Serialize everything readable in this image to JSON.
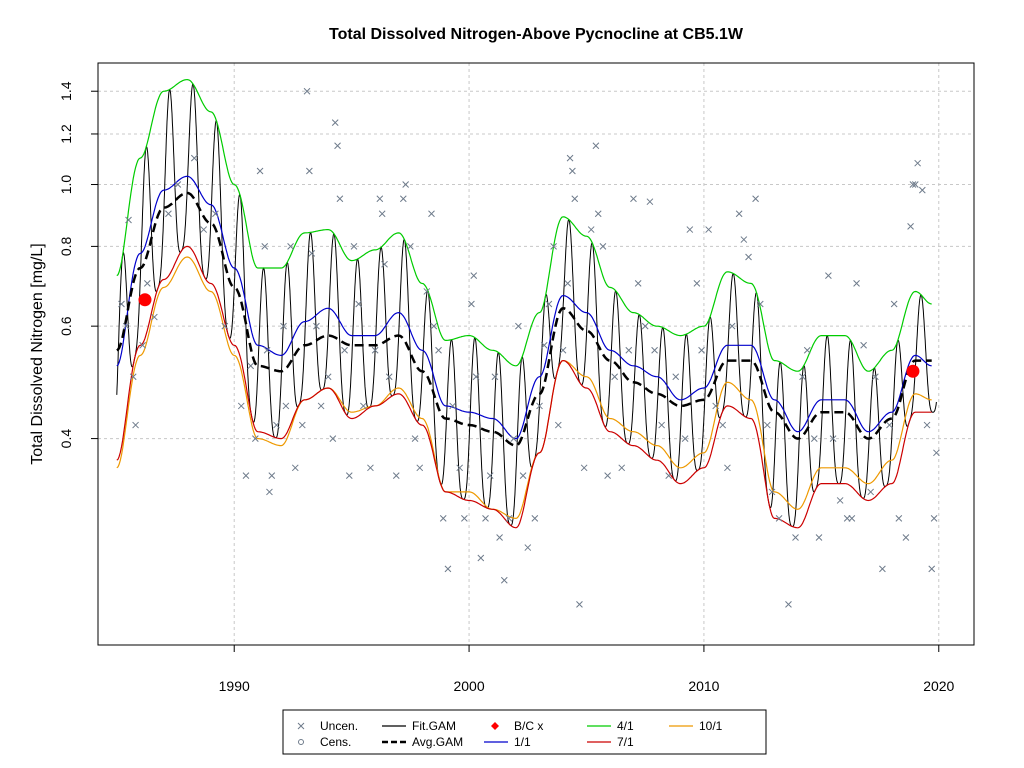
{
  "chart_data": {
    "type": "line",
    "title": "Total Dissolved Nitrogen-Above Pycnocline at CB5.1W",
    "xlabel": "",
    "ylabel": "Total Dissolved Nitrogen [mg/L]",
    "xlim": [
      1984.2,
      2021.5
    ],
    "ylim": [
      0.19,
      1.55
    ],
    "y_scale": "log",
    "x_ticks": [
      1990,
      2000,
      2010,
      2020
    ],
    "x_tick_labels": [
      "1990",
      "2000",
      "2010",
      "2020"
    ],
    "y_ticks": [
      0.4,
      0.6,
      0.8,
      1.0,
      1.2,
      1.4
    ],
    "y_tick_labels": [
      "0.4",
      "0.6",
      "0.8",
      "1.0",
      "1.2",
      "1.4"
    ],
    "grid": true,
    "legend_position": "bottom",
    "colors": {
      "fit_gam": "#000000",
      "avg_gam": "#000000",
      "one_one": "#0000cc",
      "four_one": "#00cc00",
      "seven_one": "#cc0000",
      "ten_one": "#ee9900",
      "uncen": "#6e7b8b",
      "bc": "#ff0000"
    },
    "series": [
      {
        "name": "Avg.GAM",
        "x": [
          1985,
          1986,
          1987,
          1988,
          1989,
          1990,
          1991,
          1992,
          1993,
          1994,
          1995,
          1996,
          1997,
          1998,
          1999,
          2000,
          2001,
          2002,
          2003,
          2004,
          2005,
          2006,
          2007,
          2008,
          2009,
          2010,
          2011,
          2012,
          2013,
          2014,
          2015,
          2016,
          2017,
          2018,
          2019,
          2019.7
        ],
        "y": [
          0.55,
          0.74,
          0.92,
          0.97,
          0.87,
          0.69,
          0.52,
          0.51,
          0.56,
          0.58,
          0.56,
          0.56,
          0.58,
          0.51,
          0.43,
          0.42,
          0.41,
          0.39,
          0.47,
          0.64,
          0.59,
          0.53,
          0.49,
          0.47,
          0.45,
          0.46,
          0.53,
          0.53,
          0.44,
          0.4,
          0.44,
          0.44,
          0.4,
          0.43,
          0.53,
          0.53
        ]
      },
      {
        "name": "1/1",
        "x": [
          1985,
          1986,
          1987,
          1988,
          1989,
          1990,
          1991,
          1992,
          1993,
          1994,
          1995,
          1996,
          1997,
          1998,
          1999,
          2000,
          2001,
          2002,
          2003,
          2004,
          2005,
          2006,
          2007,
          2008,
          2009,
          2010,
          2011,
          2012,
          2013,
          2014,
          2015,
          2016,
          2017,
          2018,
          2019,
          2019.7
        ],
        "y": [
          0.52,
          0.78,
          0.98,
          1.03,
          0.93,
          0.74,
          0.56,
          0.54,
          0.61,
          0.64,
          0.58,
          0.58,
          0.63,
          0.55,
          0.45,
          0.44,
          0.43,
          0.4,
          0.5,
          0.67,
          0.63,
          0.55,
          0.52,
          0.5,
          0.46,
          0.48,
          0.56,
          0.56,
          0.46,
          0.41,
          0.46,
          0.46,
          0.41,
          0.44,
          0.54,
          0.52
        ]
      },
      {
        "name": "4/1",
        "x": [
          1985,
          1986,
          1987,
          1988,
          1989,
          1990,
          1991,
          1992,
          1993,
          1994,
          1995,
          1996,
          1997,
          1998,
          1999,
          2000,
          2001,
          2002,
          2003,
          2004,
          2005,
          2006,
          2007,
          2008,
          2009,
          2010,
          2011,
          2012,
          2013,
          2014,
          2015,
          2016,
          2017,
          2018,
          2019,
          2019.7
        ],
        "y": [
          0.72,
          1.1,
          1.4,
          1.46,
          1.3,
          1.0,
          0.74,
          0.74,
          0.84,
          0.85,
          0.76,
          0.79,
          0.84,
          0.7,
          0.57,
          0.58,
          0.55,
          0.52,
          0.63,
          0.89,
          0.83,
          0.69,
          0.63,
          0.6,
          0.58,
          0.6,
          0.73,
          0.7,
          0.53,
          0.51,
          0.58,
          0.58,
          0.51,
          0.55,
          0.68,
          0.65
        ]
      },
      {
        "name": "7/1",
        "x": [
          1985,
          1986,
          1987,
          1988,
          1989,
          1990,
          1991,
          1992,
          1993,
          1994,
          1995,
          1996,
          1997,
          1998,
          1999,
          2000,
          2001,
          2002,
          2003,
          2004,
          2005,
          2006,
          2007,
          2008,
          2009,
          2010,
          2011,
          2012,
          2013,
          2014,
          2015,
          2016,
          2017,
          2018,
          2019,
          2019.7
        ],
        "y": [
          0.37,
          0.56,
          0.71,
          0.8,
          0.7,
          0.56,
          0.41,
          0.4,
          0.46,
          0.48,
          0.43,
          0.45,
          0.47,
          0.42,
          0.33,
          0.32,
          0.31,
          0.29,
          0.38,
          0.53,
          0.48,
          0.41,
          0.39,
          0.37,
          0.34,
          0.36,
          0.45,
          0.43,
          0.3,
          0.29,
          0.34,
          0.34,
          0.32,
          0.34,
          0.44,
          0.44
        ]
      },
      {
        "name": "10/1",
        "x": [
          1985,
          1986,
          1987,
          1988,
          1989,
          1990,
          1991,
          1992,
          1993,
          1994,
          1995,
          1996,
          1997,
          1998,
          1999,
          2000,
          2001,
          2002,
          2003,
          2004,
          2005,
          2006,
          2007,
          2008,
          2009,
          2010,
          2011,
          2012,
          2013,
          2014,
          2015,
          2016,
          2017,
          2018,
          2019,
          2019.7
        ],
        "y": [
          0.36,
          0.54,
          0.69,
          0.77,
          0.68,
          0.54,
          0.4,
          0.39,
          0.46,
          0.48,
          0.44,
          0.45,
          0.48,
          0.43,
          0.33,
          0.33,
          0.31,
          0.3,
          0.38,
          0.53,
          0.5,
          0.43,
          0.41,
          0.39,
          0.36,
          0.38,
          0.49,
          0.46,
          0.33,
          0.31,
          0.36,
          0.36,
          0.34,
          0.37,
          0.47,
          0.46
        ]
      }
    ],
    "fit_gam": {
      "name": "Fit.GAM",
      "note": "seasonal oscillation between 7/1 (min) and 4/1 (max) curves",
      "x_start": 1985,
      "x_end": 2019.9,
      "period_years": 1.0
    },
    "uncensored_points": [
      [
        1985.2,
        0.65
      ],
      [
        1985.4,
        0.6
      ],
      [
        1985.5,
        0.88
      ],
      [
        1985.7,
        0.5
      ],
      [
        1985.8,
        0.42
      ],
      [
        1986.1,
        0.56
      ],
      [
        1986.3,
        0.7
      ],
      [
        1986.6,
        0.62
      ],
      [
        1987.2,
        0.9
      ],
      [
        1987.6,
        1.0
      ],
      [
        1988.3,
        1.1
      ],
      [
        1988.7,
        0.85
      ],
      [
        1989.2,
        0.9
      ],
      [
        1989.6,
        0.6
      ],
      [
        1990.3,
        0.45
      ],
      [
        1990.5,
        0.35
      ],
      [
        1990.7,
        0.52
      ],
      [
        1990.9,
        0.4
      ],
      [
        1991.1,
        1.05
      ],
      [
        1991.3,
        0.8
      ],
      [
        1991.4,
        0.55
      ],
      [
        1991.5,
        0.33
      ],
      [
        1991.6,
        0.35
      ],
      [
        1991.8,
        0.42
      ],
      [
        1992.1,
        0.6
      ],
      [
        1992.2,
        0.45
      ],
      [
        1992.4,
        0.8
      ],
      [
        1992.6,
        0.36
      ],
      [
        1992.9,
        0.42
      ],
      [
        1993.1,
        1.4
      ],
      [
        1993.2,
        1.05
      ],
      [
        1993.3,
        0.78
      ],
      [
        1993.5,
        0.6
      ],
      [
        1993.7,
        0.45
      ],
      [
        1994.0,
        0.5
      ],
      [
        1994.2,
        0.4
      ],
      [
        1994.3,
        1.25
      ],
      [
        1994.4,
        1.15
      ],
      [
        1994.5,
        0.95
      ],
      [
        1994.7,
        0.55
      ],
      [
        1994.9,
        0.35
      ],
      [
        1995.1,
        0.8
      ],
      [
        1995.3,
        0.65
      ],
      [
        1995.5,
        0.45
      ],
      [
        1995.8,
        0.36
      ],
      [
        1996.0,
        0.55
      ],
      [
        1996.2,
        0.95
      ],
      [
        1996.3,
        0.9
      ],
      [
        1996.4,
        0.75
      ],
      [
        1996.6,
        0.5
      ],
      [
        1996.9,
        0.35
      ],
      [
        1997.2,
        0.95
      ],
      [
        1997.3,
        1.0
      ],
      [
        1997.5,
        0.8
      ],
      [
        1997.7,
        0.4
      ],
      [
        1997.9,
        0.36
      ],
      [
        1998.2,
        0.68
      ],
      [
        1998.4,
        0.9
      ],
      [
        1998.5,
        0.6
      ],
      [
        1998.7,
        0.55
      ],
      [
        1998.9,
        0.3
      ],
      [
        1999.1,
        0.25
      ],
      [
        1999.3,
        0.45
      ],
      [
        1999.6,
        0.36
      ],
      [
        1999.8,
        0.3
      ],
      [
        2000.1,
        0.65
      ],
      [
        2000.2,
        0.72
      ],
      [
        2000.3,
        0.5
      ],
      [
        2000.5,
        0.26
      ],
      [
        2000.7,
        0.3
      ],
      [
        2000.9,
        0.35
      ],
      [
        2001.1,
        0.5
      ],
      [
        2001.3,
        0.28
      ],
      [
        2001.5,
        0.24
      ],
      [
        2001.7,
        0.3
      ],
      [
        2001.9,
        0.4
      ],
      [
        2002.1,
        0.6
      ],
      [
        2002.3,
        0.35
      ],
      [
        2002.5,
        0.27
      ],
      [
        2002.8,
        0.3
      ],
      [
        2003.0,
        0.45
      ],
      [
        2003.2,
        0.56
      ],
      [
        2003.4,
        0.65
      ],
      [
        2003.6,
        0.8
      ],
      [
        2003.8,
        0.42
      ],
      [
        2004.0,
        0.55
      ],
      [
        2004.2,
        0.7
      ],
      [
        2004.3,
        1.1
      ],
      [
        2004.4,
        1.05
      ],
      [
        2004.5,
        0.95
      ],
      [
        2004.7,
        0.22
      ],
      [
        2004.9,
        0.36
      ],
      [
        2005.2,
        0.85
      ],
      [
        2005.4,
        1.15
      ],
      [
        2005.5,
        0.9
      ],
      [
        2005.7,
        0.8
      ],
      [
        2005.9,
        0.35
      ],
      [
        2006.2,
        0.5
      ],
      [
        2006.5,
        0.36
      ],
      [
        2006.8,
        0.55
      ],
      [
        2007.0,
        0.95
      ],
      [
        2007.2,
        0.7
      ],
      [
        2007.5,
        0.6
      ],
      [
        2007.7,
        0.94
      ],
      [
        2007.9,
        0.55
      ],
      [
        2008.2,
        0.42
      ],
      [
        2008.5,
        0.35
      ],
      [
        2008.8,
        0.5
      ],
      [
        2009.2,
        0.4
      ],
      [
        2009.4,
        0.85
      ],
      [
        2009.7,
        0.7
      ],
      [
        2009.9,
        0.55
      ],
      [
        2010.2,
        0.85
      ],
      [
        2010.5,
        0.45
      ],
      [
        2010.8,
        0.42
      ],
      [
        2011.0,
        0.36
      ],
      [
        2011.2,
        0.6
      ],
      [
        2011.5,
        0.9
      ],
      [
        2011.7,
        0.82
      ],
      [
        2011.9,
        0.77
      ],
      [
        2012.2,
        0.95
      ],
      [
        2012.4,
        0.65
      ],
      [
        2012.7,
        0.42
      ],
      [
        2012.9,
        0.33
      ],
      [
        2013.2,
        0.3
      ],
      [
        2013.6,
        0.22
      ],
      [
        2013.9,
        0.28
      ],
      [
        2014.2,
        0.5
      ],
      [
        2014.4,
        0.55
      ],
      [
        2014.7,
        0.4
      ],
      [
        2014.9,
        0.28
      ],
      [
        2015.3,
        0.72
      ],
      [
        2015.5,
        0.4
      ],
      [
        2015.8,
        0.32
      ],
      [
        2016.1,
        0.3
      ],
      [
        2016.3,
        0.3
      ],
      [
        2016.5,
        0.7
      ],
      [
        2016.8,
        0.56
      ],
      [
        2017.1,
        0.33
      ],
      [
        2017.3,
        0.5
      ],
      [
        2017.6,
        0.25
      ],
      [
        2017.9,
        0.42
      ],
      [
        2018.1,
        0.65
      ],
      [
        2018.3,
        0.3
      ],
      [
        2018.6,
        0.28
      ],
      [
        2018.8,
        0.86
      ],
      [
        2018.9,
        1.0
      ],
      [
        2019.0,
        1.0
      ],
      [
        2019.1,
        1.08
      ],
      [
        2019.3,
        0.98
      ],
      [
        2019.5,
        0.42
      ],
      [
        2019.7,
        0.25
      ],
      [
        2019.8,
        0.3
      ],
      [
        2019.9,
        0.38
      ]
    ],
    "bc_points": [
      [
        1986.2,
        0.66
      ],
      [
        2018.9,
        0.51
      ]
    ]
  },
  "legend": {
    "items": [
      {
        "label": "Uncen.",
        "kind": "x",
        "color": "#6e7b8b"
      },
      {
        "label": "Cens.",
        "kind": "circle",
        "color": "#6e7b8b"
      },
      {
        "label": "Fit.GAM",
        "kind": "line",
        "color": "#000000"
      },
      {
        "label": "Avg.GAM",
        "kind": "dashed",
        "color": "#000000"
      },
      {
        "label": "B/C x",
        "kind": "diamond",
        "color": "#ff0000"
      },
      {
        "label": "1/1",
        "kind": "line",
        "color": "#0000cc"
      },
      {
        "label": "4/1",
        "kind": "line",
        "color": "#00cc00"
      },
      {
        "label": "7/1",
        "kind": "line",
        "color": "#cc0000"
      },
      {
        "label": "10/1",
        "kind": "line",
        "color": "#ee9900"
      }
    ]
  }
}
